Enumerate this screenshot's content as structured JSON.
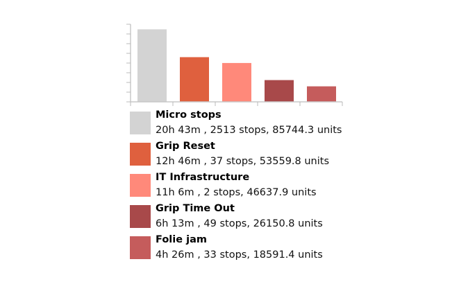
{
  "chart_data": {
    "type": "bar",
    "categories": [
      "Micro stops",
      "Grip Reset",
      "IT Infrastructure",
      "Grip Time Out",
      "Folie jam"
    ],
    "values": [
      1243,
      766,
      666,
      373,
      266
    ],
    "value_unit": "minutes (duration)",
    "ylim": [
      0,
      1330
    ],
    "y_tick_labels_shown": false,
    "grid": false,
    "legend_placement": "bottom",
    "colors": [
      "#d3d3d3",
      "#df603e",
      "#ff897a",
      "#a8494a",
      "#c55c5c"
    ],
    "legend": [
      {
        "name": "Micro stops",
        "detail": "20h 43m , 2513 stops,  85744.3 units"
      },
      {
        "name": "Grip Reset",
        "detail": "12h 46m , 37 stops,  53559.8 units"
      },
      {
        "name": "IT Infrastructure",
        "detail": "11h 6m , 2 stops,  46637.9 units"
      },
      {
        "name": "Grip Time Out",
        "detail": "6h 13m , 49 stops,  26150.8 units"
      },
      {
        "name": "Folie jam",
        "detail": "4h 26m , 33 stops,  18591.4 units"
      }
    ]
  }
}
